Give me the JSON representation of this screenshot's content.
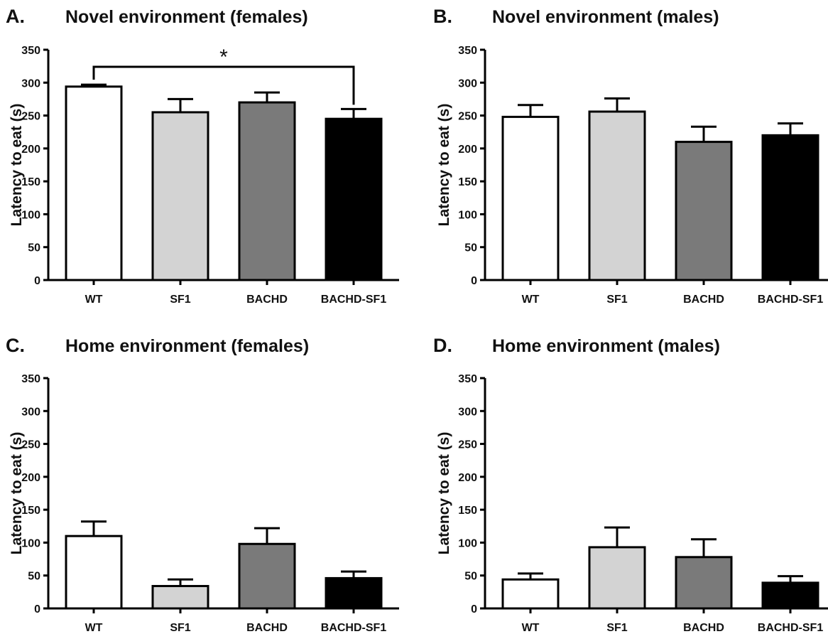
{
  "chart_data": [
    {
      "type": "bar",
      "panel": "A.",
      "title": "Novel environment (females)",
      "ylabel": "Latency to eat (s)",
      "xlabel": "",
      "ylim": [
        0,
        350
      ],
      "yticks": [
        0,
        50,
        100,
        150,
        200,
        250,
        300,
        350
      ],
      "categories": [
        "WT",
        "SF1",
        "BACHD",
        "BACHD-SF1"
      ],
      "values": [
        294,
        255,
        270,
        245
      ],
      "errors": [
        3,
        20,
        15,
        15
      ],
      "colors": [
        "#ffffff",
        "#d3d3d3",
        "#7a7a7a",
        "#000000"
      ],
      "significance": [
        {
          "from": 0,
          "to": 3,
          "label": "*"
        }
      ]
    },
    {
      "type": "bar",
      "panel": "B.",
      "title": "Novel environment (males)",
      "ylabel": "Latency to eat (s)",
      "xlabel": "",
      "ylim": [
        0,
        350
      ],
      "yticks": [
        0,
        50,
        100,
        150,
        200,
        250,
        300,
        350
      ],
      "categories": [
        "WT",
        "SF1",
        "BACHD",
        "BACHD-SF1"
      ],
      "values": [
        248,
        256,
        210,
        220
      ],
      "errors": [
        18,
        20,
        23,
        18
      ],
      "colors": [
        "#ffffff",
        "#d3d3d3",
        "#7a7a7a",
        "#000000"
      ],
      "significance": []
    },
    {
      "type": "bar",
      "panel": "C.",
      "title": "Home environment (females)",
      "ylabel": "Latency to eat (s)",
      "xlabel": "",
      "ylim": [
        0,
        350
      ],
      "yticks": [
        0,
        50,
        100,
        150,
        200,
        250,
        300,
        350
      ],
      "categories": [
        "WT",
        "SF1",
        "BACHD",
        "BACHD-SF1"
      ],
      "values": [
        110,
        34,
        98,
        46
      ],
      "errors": [
        22,
        10,
        24,
        10
      ],
      "colors": [
        "#ffffff",
        "#d3d3d3",
        "#7a7a7a",
        "#000000"
      ],
      "significance": []
    },
    {
      "type": "bar",
      "panel": "D.",
      "title": "Home environment (males)",
      "ylabel": "Latency to eat (s)",
      "xlabel": "",
      "ylim": [
        0,
        350
      ],
      "yticks": [
        0,
        50,
        100,
        150,
        200,
        250,
        300,
        350
      ],
      "categories": [
        "WT",
        "SF1",
        "BACHD",
        "BACHD-SF1"
      ],
      "values": [
        44,
        93,
        78,
        39
      ],
      "errors": [
        9,
        30,
        27,
        10
      ],
      "colors": [
        "#ffffff",
        "#d3d3d3",
        "#7a7a7a",
        "#000000"
      ],
      "significance": []
    }
  ]
}
